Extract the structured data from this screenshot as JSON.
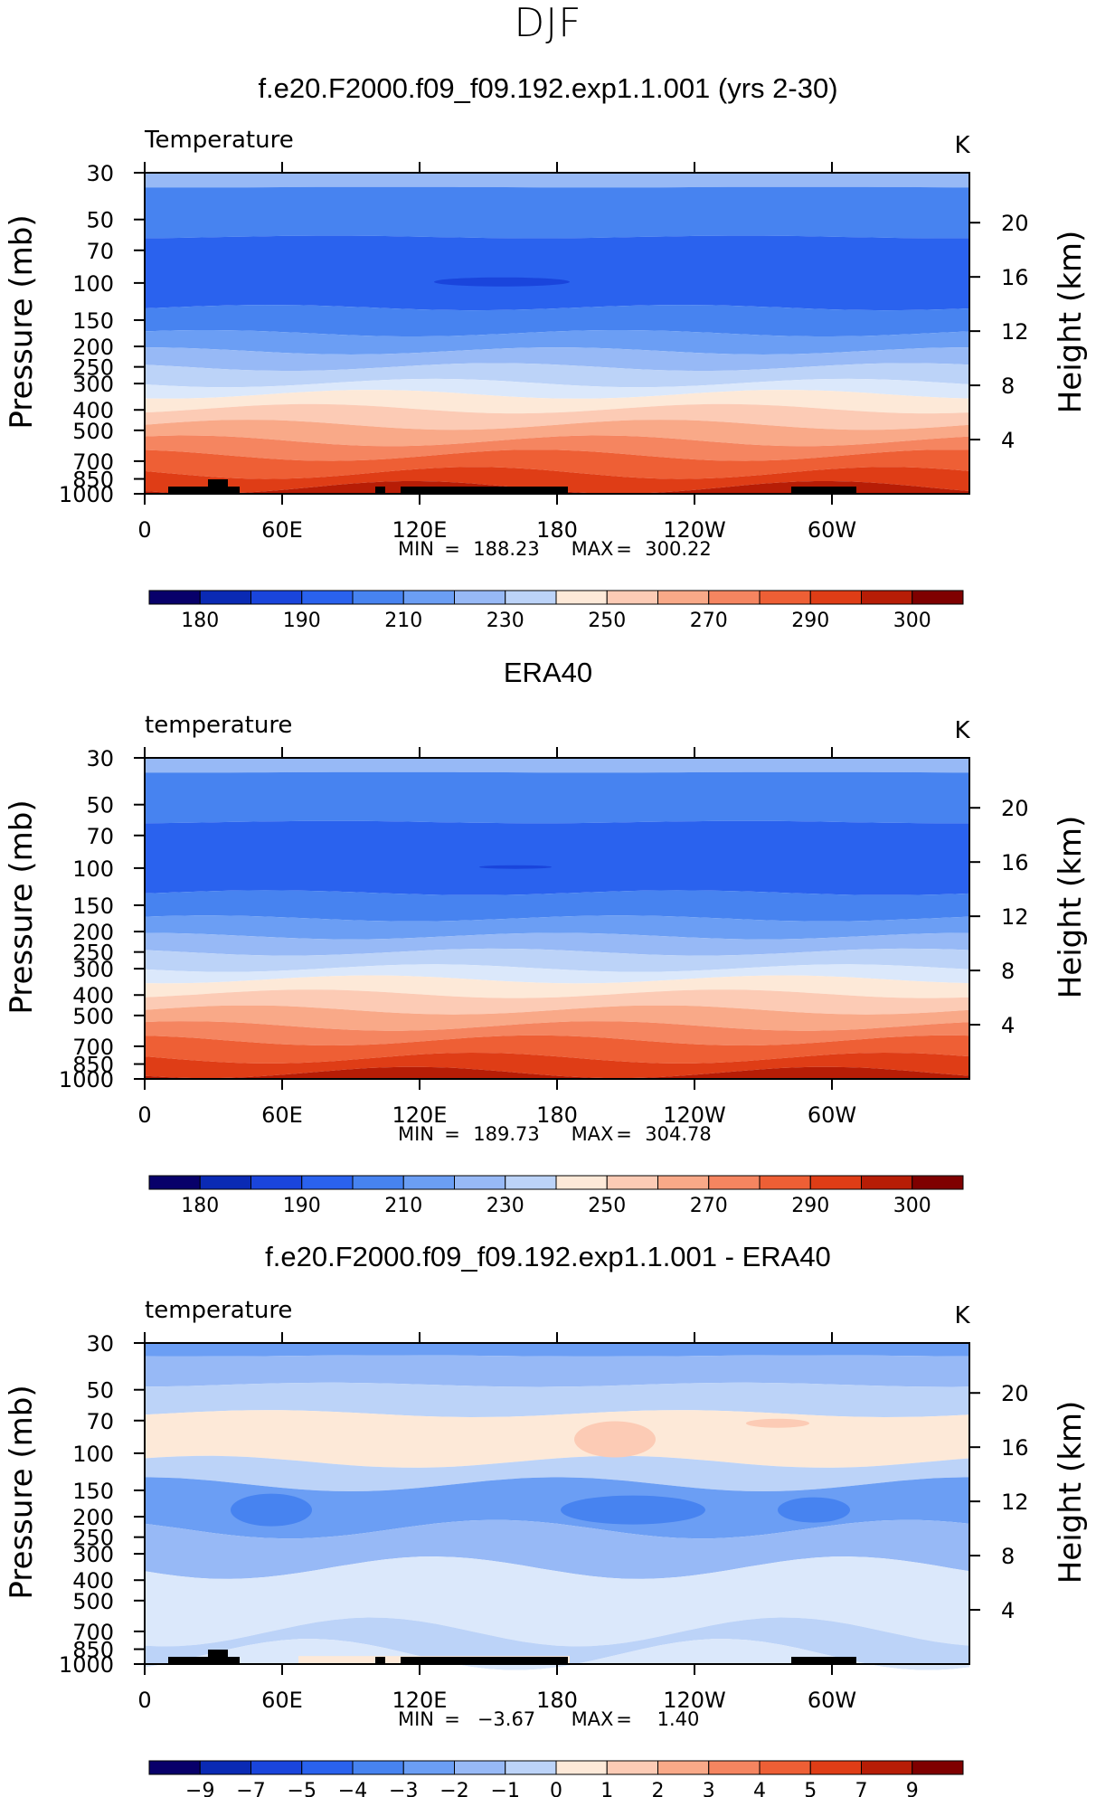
{
  "title": "DJF",
  "chart_data": [
    {
      "type": "heatmap",
      "title": "f.e20.F2000.f09_f09.192.exp1.1.001 (yrs 2-30)",
      "variable_label": "Temperature",
      "units": "K",
      "ylabel": "Pressure (mb)",
      "ylabel_right": "Height (km)",
      "x_ticks": [
        "0",
        "60E",
        "120E",
        "180",
        "120W",
        "60W"
      ],
      "y_ticks": [
        30,
        50,
        70,
        100,
        150,
        200,
        250,
        300,
        400,
        500,
        700,
        850,
        1000
      ],
      "height_ticks": [
        4,
        8,
        12,
        16,
        20
      ],
      "min_label": "MIN",
      "min_value": "188.23",
      "max_label": "MAX",
      "max_value": "300.22",
      "colorbar_labels": [
        "180",
        "190",
        "210",
        "230",
        "250",
        "270",
        "290",
        "300"
      ],
      "colormap": "cool-warm diverging (blue to red)",
      "terrain_mask": "black (below surface)"
    },
    {
      "type": "heatmap",
      "title": "ERA40",
      "variable_label": "temperature",
      "units": "K",
      "ylabel": "Pressure (mb)",
      "ylabel_right": "Height (km)",
      "x_ticks": [
        "0",
        "60E",
        "120E",
        "180",
        "120W",
        "60W"
      ],
      "y_ticks": [
        30,
        50,
        70,
        100,
        150,
        200,
        250,
        300,
        400,
        500,
        700,
        850,
        1000
      ],
      "height_ticks": [
        4,
        8,
        12,
        16,
        20
      ],
      "min_label": "MIN",
      "min_value": "189.73",
      "max_label": "MAX",
      "max_value": "304.78",
      "colorbar_labels": [
        "180",
        "190",
        "210",
        "230",
        "250",
        "270",
        "290",
        "300"
      ],
      "colormap": "cool-warm diverging (blue to red)"
    },
    {
      "type": "heatmap",
      "title": "f.e20.F2000.f09_f09.192.exp1.1.001 - ERA40",
      "variable_label": "temperature",
      "units": "K",
      "ylabel": "Pressure (mb)",
      "ylabel_right": "Height (km)",
      "x_ticks": [
        "0",
        "60E",
        "120E",
        "180",
        "120W",
        "60W"
      ],
      "y_ticks": [
        30,
        50,
        70,
        100,
        150,
        200,
        250,
        300,
        400,
        500,
        700,
        850,
        1000
      ],
      "height_ticks": [
        4,
        8,
        12,
        16,
        20
      ],
      "min_label": "MIN",
      "min_value": "−3.67",
      "max_label": "MAX",
      "max_value": "1.40",
      "colorbar_labels": [
        "−9",
        "−7",
        "−5",
        "−4",
        "−3",
        "−2",
        "−1",
        "0",
        "1",
        "2",
        "3",
        "4",
        "5",
        "7",
        "9"
      ],
      "colormap": "cool-warm diverging (blue to red)",
      "terrain_mask": "black (below surface)"
    }
  ],
  "colors": {
    "cmap": [
      "#08006a",
      "#0a2ab4",
      "#1a45dc",
      "#2a62ee",
      "#4783f0",
      "#6b9ef4",
      "#97b9f6",
      "#bcd3f8",
      "#dbe8fb",
      "#fde9d8",
      "#fccbb5",
      "#f9a988",
      "#f58560",
      "#ee5f35",
      "#df3d16",
      "#b71d06",
      "#7f0000"
    ],
    "mask": "#000000"
  }
}
